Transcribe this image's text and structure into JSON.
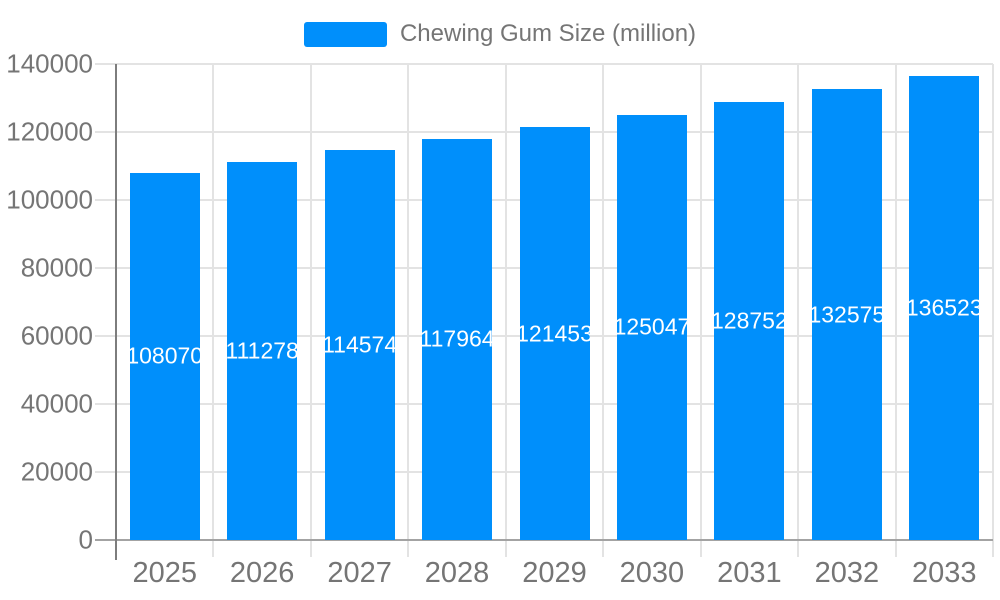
{
  "legend": {
    "label": "Chewing Gum Size (million)"
  },
  "chart_data": {
    "type": "bar",
    "title": "Chewing Gum Size (million)",
    "categories": [
      "2025",
      "2026",
      "2027",
      "2028",
      "2029",
      "2030",
      "2031",
      "2032",
      "2033"
    ],
    "series": [
      {
        "name": "Chewing Gum Size (million)",
        "values": [
          108070,
          111278,
          114574,
          117964,
          121453,
          125047,
          128752,
          132575,
          136523
        ]
      }
    ],
    "value_labels": [
      "108070",
      "111278",
      "114574",
      "117964",
      "121453",
      "125047",
      "128752",
      "132575",
      "136523"
    ],
    "xlabel": "",
    "ylabel": "",
    "ylim": [
      0,
      140000
    ],
    "ytick_step": 20000,
    "ytick_labels": [
      "0",
      "20000",
      "40000",
      "60000",
      "80000",
      "100000",
      "120000",
      "140000"
    ],
    "grid": true,
    "legend_position": "top",
    "bar_labels_position": "inside-center",
    "colors": {
      "bar": "#008FFB",
      "bar_label_text": "#FFFFFF",
      "axis_text": "#757575",
      "legend_text": "#757575",
      "gridline": "#E3E3E3",
      "axis_line": "#A3A3A3",
      "y_axis_line": "#7D7D7D",
      "background": "#FFFFFF"
    }
  }
}
